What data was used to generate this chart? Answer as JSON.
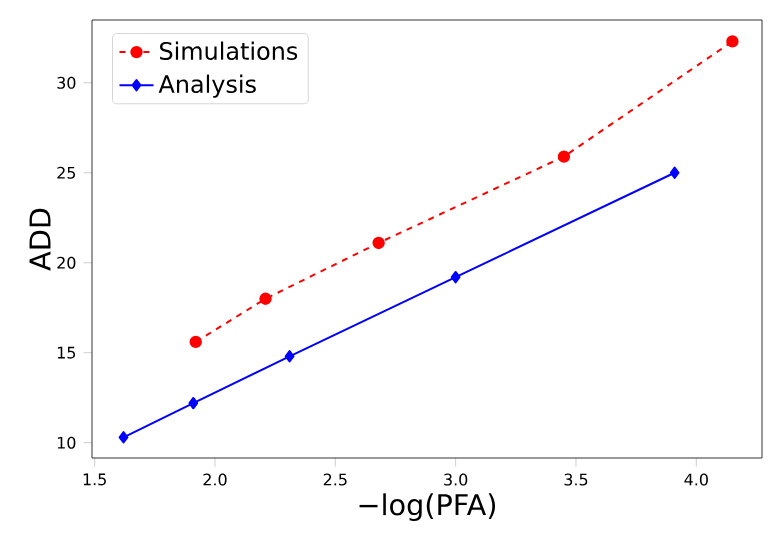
{
  "chart_data": {
    "type": "line",
    "xlabel": "−log(PFA)",
    "ylabel": "ADD",
    "xlim": [
      1.489,
      4.273
    ],
    "ylim": [
      9.15,
      33.49
    ],
    "xticks": [
      {
        "value": 1.5,
        "label": "1.5"
      },
      {
        "value": 2.0,
        "label": "2.0"
      },
      {
        "value": 2.5,
        "label": "2.5"
      },
      {
        "value": 3.0,
        "label": "3.0"
      },
      {
        "value": 3.5,
        "label": "3.5"
      },
      {
        "value": 4.0,
        "label": "4.0"
      }
    ],
    "yticks": [
      10,
      15,
      20,
      25,
      30
    ],
    "legend": "top left",
    "series": [
      {
        "name": "Simulations",
        "color": "#ff0000",
        "marker": "circle",
        "line_style": "dashed",
        "x": [
          1.92,
          2.21,
          2.68,
          3.45,
          4.15
        ],
        "values": [
          15.6,
          18.0,
          21.1,
          25.9,
          32.3
        ]
      },
      {
        "name": "Analysis",
        "color": "#0000ff",
        "marker": "diamond",
        "line_style": "solid",
        "x": [
          1.62,
          1.91,
          2.31,
          3.0,
          3.91
        ],
        "values": [
          10.3,
          12.2,
          14.8,
          19.2,
          25.0
        ]
      }
    ]
  }
}
